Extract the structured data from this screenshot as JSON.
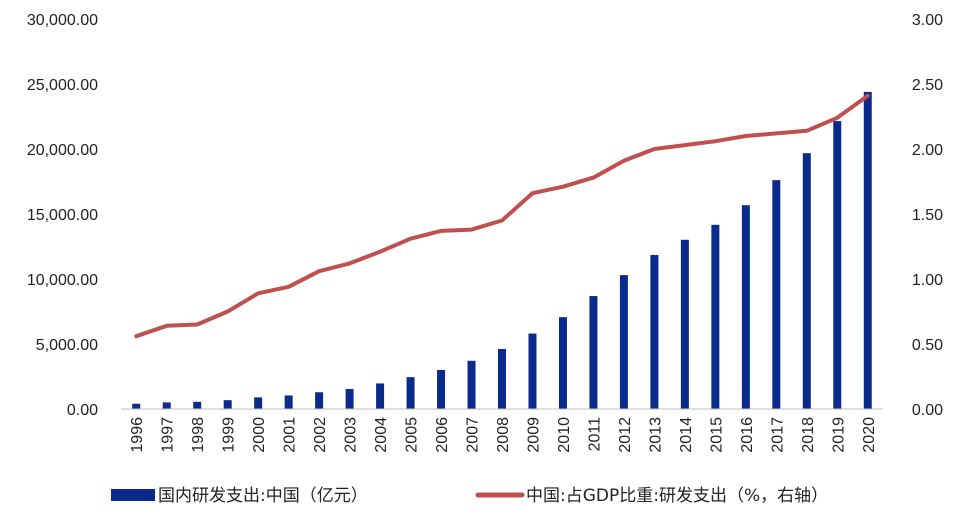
{
  "chart_data": {
    "type": "bar",
    "categories": [
      "1996",
      "1997",
      "1998",
      "1999",
      "2000",
      "2001",
      "2002",
      "2003",
      "2004",
      "2005",
      "2006",
      "2007",
      "2008",
      "2009",
      "2010",
      "2011",
      "2012",
      "2013",
      "2014",
      "2015",
      "2016",
      "2017",
      "2018",
      "2019",
      "2020"
    ],
    "series": [
      {
        "name": "国内研发支出:中国（亿元）",
        "type": "bar",
        "axis": "left",
        "color": "#0a2b8c",
        "values": [
          404,
          509,
          551,
          679,
          896,
          1042,
          1288,
          1540,
          1966,
          2450,
          3003,
          3710,
          4616,
          5802,
          7063,
          8687,
          10298,
          11847,
          13016,
          14170,
          15677,
          17606,
          19678,
          22144,
          24393
        ]
      },
      {
        "name": "中国:占GDP比重:研发支出（%，右轴）",
        "type": "line",
        "axis": "right",
        "color": "#c0504d",
        "values": [
          0.56,
          0.64,
          0.65,
          0.75,
          0.89,
          0.94,
          1.06,
          1.12,
          1.21,
          1.31,
          1.37,
          1.38,
          1.45,
          1.66,
          1.71,
          1.78,
          1.91,
          2.0,
          2.03,
          2.06,
          2.1,
          2.12,
          2.14,
          2.24,
          2.41
        ]
      }
    ],
    "y_left": {
      "lim": [
        0,
        30000
      ],
      "ticks": [
        "0.00",
        "5,000.00",
        "10,000.00",
        "15,000.00",
        "20,000.00",
        "25,000.00",
        "30,000.00"
      ]
    },
    "y_right": {
      "lim": [
        0,
        3
      ],
      "ticks": [
        "0.00",
        "0.50",
        "1.00",
        "1.50",
        "2.00",
        "2.50",
        "3.00"
      ]
    },
    "grid": false,
    "legend_position": "bottom",
    "title": "",
    "xlabel": "",
    "ylabel": ""
  }
}
